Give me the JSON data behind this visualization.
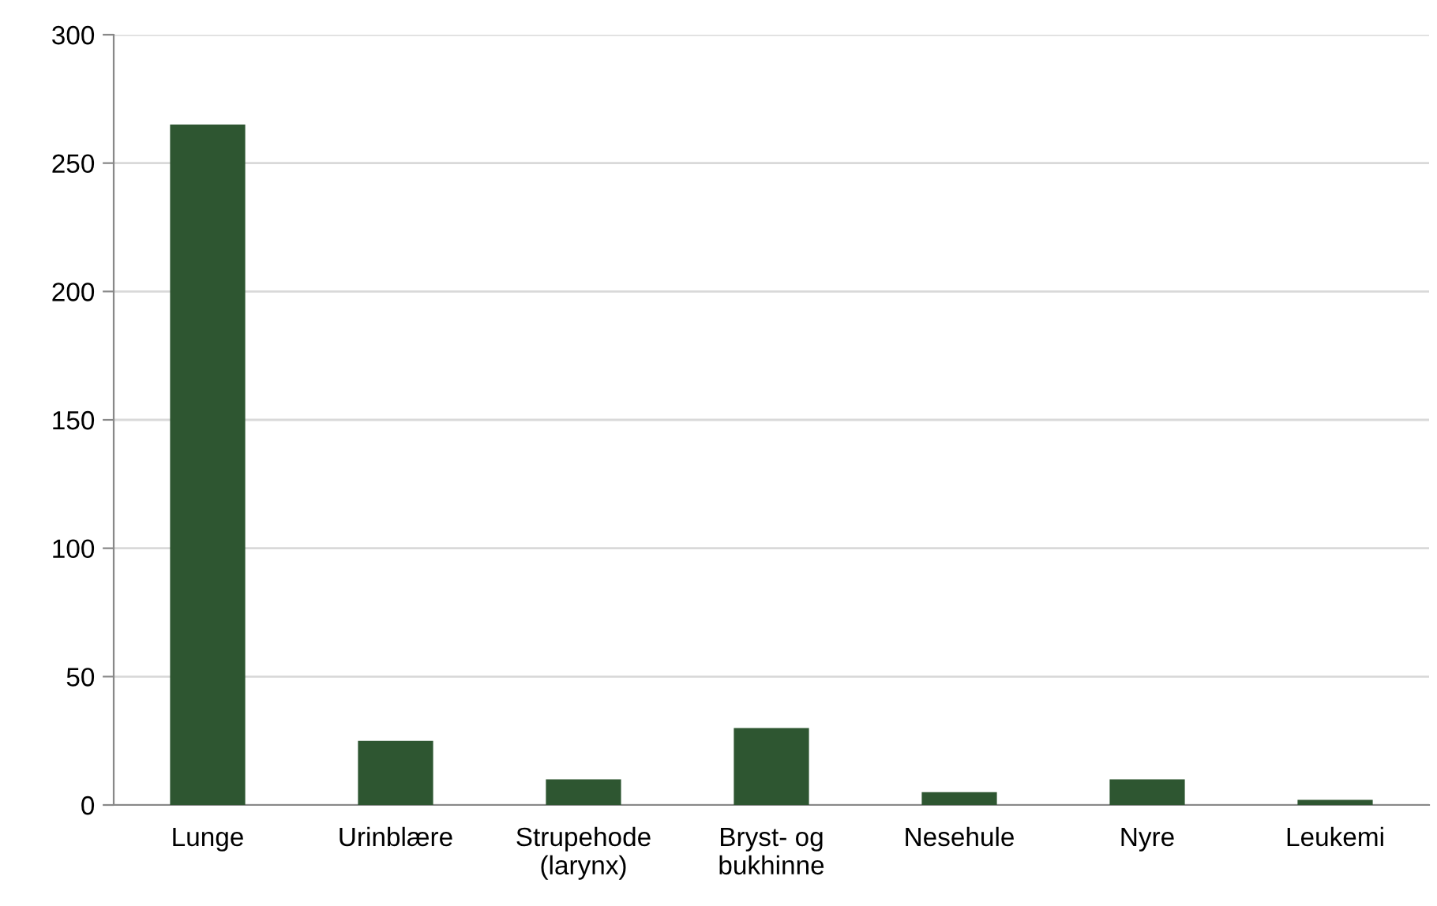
{
  "chart_data": {
    "type": "bar",
    "categories": [
      "Lunge",
      "Urinblære",
      "Strupehode\n(larynx)",
      "Bryst- og\nbukhinne",
      "Nesehule",
      "Nyre",
      "Leukemi"
    ],
    "values": [
      265,
      25,
      10,
      30,
      5,
      10,
      2
    ],
    "color": "#2e5631",
    "ylim": [
      0,
      300
    ],
    "yticks": [
      0,
      50,
      100,
      150,
      200,
      250,
      300
    ],
    "grid": "y"
  }
}
